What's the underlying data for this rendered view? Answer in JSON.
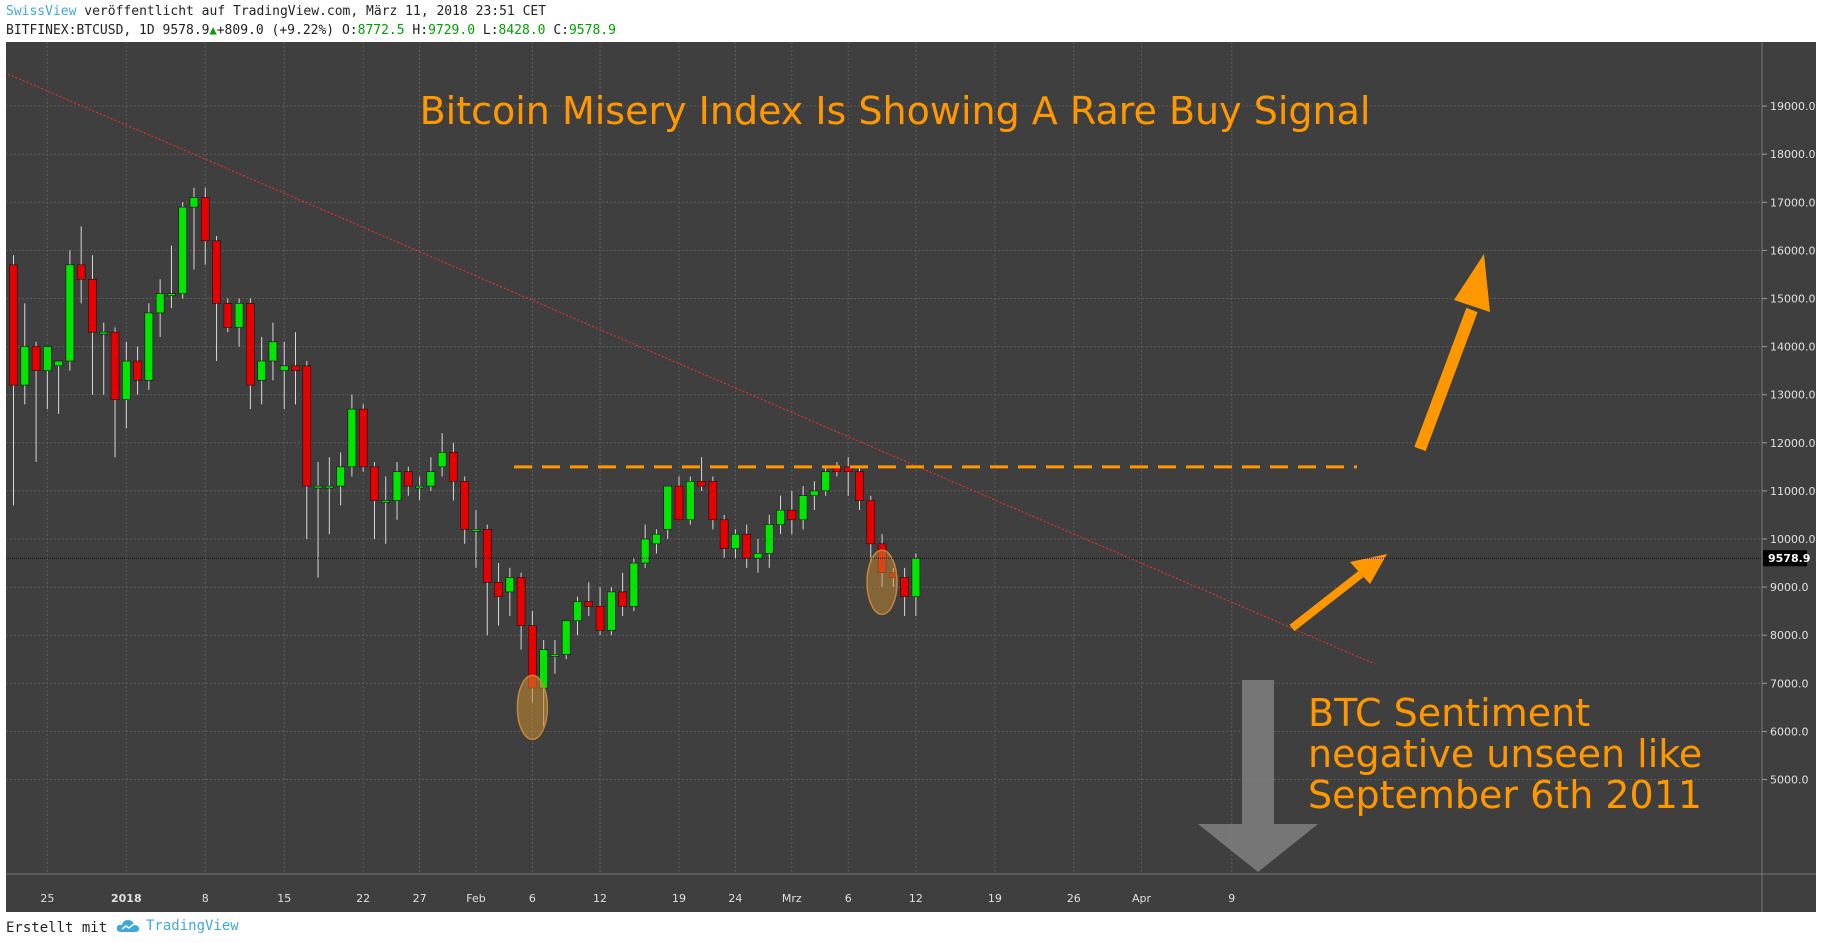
{
  "header": {
    "author": "SwissView",
    "published": " veröffentlicht auf TradingView.com, März 11, 2018 23:51 CET",
    "symbol": "BITFINEX:BTCUSD, 1D 9578.9",
    "change": "+809.0 (+9.22%)",
    "o_label": "O:",
    "o_val": "8772.5",
    "h_label": "H:",
    "h_val": "9729.0",
    "l_label": "L:",
    "l_val": "8428.0",
    "c_label": "C:",
    "c_val": "9578.9"
  },
  "footer": {
    "made_with": "Erstellt mit",
    "brand": "TradingView"
  },
  "colors": {
    "background": "#3f3f3f",
    "up": "#00e600",
    "down": "#e60000",
    "accent": "#ff9800",
    "grid": "#5d5d5d"
  },
  "chart_data": {
    "type": "candlestick",
    "title": "Bitcoin Misery Index Is Showing A Rare Buy Signal",
    "annotation": [
      "BTC Sentiment",
      "negative unseen like",
      "September 6th 2011"
    ],
    "last_price_label": "9578.9",
    "ylim": [
      4800,
      20000
    ],
    "yticks": [
      5000,
      6000,
      7000,
      8000,
      9000,
      10000,
      11000,
      12000,
      13000,
      14000,
      15000,
      16000,
      17000,
      18000,
      19000
    ],
    "ytick_labels": [
      "5000.0",
      "6000.0",
      "7000.0",
      "8000.0",
      "9000.0",
      "10000.0",
      "11000.0",
      "12000.0",
      "13000.0",
      "14000.0",
      "15000.0",
      "16000.0",
      "17000.0",
      "18000.0",
      "19000.0"
    ],
    "xticks": [
      {
        "i": 3,
        "label": "25"
      },
      {
        "i": 10,
        "label": "2018"
      },
      {
        "i": 17,
        "label": "8"
      },
      {
        "i": 24,
        "label": "15"
      },
      {
        "i": 31,
        "label": "22"
      },
      {
        "i": 36,
        "label": "27"
      },
      {
        "i": 41,
        "label": "Feb"
      },
      {
        "i": 46,
        "label": "6"
      },
      {
        "i": 52,
        "label": "12"
      },
      {
        "i": 59,
        "label": "19"
      },
      {
        "i": 64,
        "label": "24"
      },
      {
        "i": 69,
        "label": "Mrz"
      },
      {
        "i": 74,
        "label": "6"
      },
      {
        "i": 80,
        "label": "12"
      },
      {
        "i": 87,
        "label": "19"
      },
      {
        "i": 94,
        "label": "26"
      },
      {
        "i": 100,
        "label": "Apr"
      },
      {
        "i": 108,
        "label": "9"
      }
    ],
    "ohlc": [
      [
        15700,
        15900,
        10700,
        13200
      ],
      [
        13200,
        14900,
        12800,
        14000
      ],
      [
        14000,
        14100,
        11600,
        13500
      ],
      [
        13500,
        14000,
        12700,
        14000
      ],
      [
        13600,
        13700,
        12600,
        13700
      ],
      [
        13700,
        16000,
        13500,
        15700
      ],
      [
        15700,
        16500,
        14900,
        15400
      ],
      [
        15400,
        15900,
        13000,
        14300
      ],
      [
        14300,
        14500,
        13000,
        14300
      ],
      [
        14300,
        14400,
        11700,
        12900
      ],
      [
        12900,
        14100,
        12300,
        13700
      ],
      [
        13700,
        14000,
        13000,
        13300
      ],
      [
        13300,
        14900,
        13100,
        14700
      ],
      [
        14700,
        15400,
        14200,
        15100
      ],
      [
        15100,
        16100,
        14800,
        15100
      ],
      [
        15100,
        17000,
        15000,
        16900
      ],
      [
        16900,
        17300,
        15600,
        17100
      ],
      [
        17100,
        17300,
        15700,
        16200
      ],
      [
        16200,
        16300,
        13700,
        14900
      ],
      [
        14900,
        15000,
        14300,
        14400
      ],
      [
        14400,
        15000,
        14000,
        14900
      ],
      [
        14900,
        15000,
        12700,
        13200
      ],
      [
        13300,
        14200,
        12800,
        13700
      ],
      [
        13700,
        14500,
        13300,
        14100
      ],
      [
        13500,
        14100,
        12700,
        13600
      ],
      [
        13600,
        14300,
        12800,
        13500
      ],
      [
        13600,
        13700,
        10000,
        11100
      ],
      [
        11100,
        11600,
        9200,
        11100
      ],
      [
        11100,
        11700,
        10100,
        11100
      ],
      [
        11100,
        11800,
        10700,
        11500
      ],
      [
        11500,
        13000,
        11300,
        12700
      ],
      [
        12700,
        12800,
        11400,
        11500
      ],
      [
        11500,
        11600,
        10000,
        10800
      ],
      [
        10800,
        11300,
        9900,
        10800
      ],
      [
        10800,
        11600,
        10400,
        11400
      ],
      [
        11400,
        11500,
        10900,
        11100
      ],
      [
        11100,
        11300,
        10800,
        11100
      ],
      [
        11100,
        11700,
        11000,
        11400
      ],
      [
        11500,
        12200,
        11300,
        11800
      ],
      [
        11800,
        12000,
        10800,
        11200
      ],
      [
        11200,
        11300,
        9900,
        10200
      ],
      [
        10200,
        10600,
        9400,
        10200
      ],
      [
        10200,
        10300,
        8000,
        9100
      ],
      [
        9100,
        9500,
        8200,
        8800
      ],
      [
        8900,
        9400,
        8400,
        9200
      ],
      [
        9200,
        9300,
        7700,
        8200
      ],
      [
        8200,
        8500,
        6600,
        6900
      ],
      [
        6900,
        7900,
        6100,
        7700
      ],
      [
        7600,
        7900,
        7200,
        7600
      ],
      [
        7600,
        8300,
        7500,
        8300
      ],
      [
        8300,
        8800,
        8000,
        8700
      ],
      [
        8700,
        9100,
        8400,
        8600
      ],
      [
        8600,
        9000,
        8000,
        8100
      ],
      [
        8100,
        9000,
        8000,
        8900
      ],
      [
        8900,
        9300,
        8400,
        8600
      ],
      [
        8600,
        9600,
        8500,
        9500
      ],
      [
        9500,
        10300,
        9400,
        10000
      ],
      [
        9900,
        10200,
        9700,
        10100
      ],
      [
        10200,
        11100,
        10000,
        11100
      ],
      [
        11100,
        11300,
        10400,
        10400
      ],
      [
        10400,
        11300,
        10300,
        11200
      ],
      [
        11200,
        11700,
        11000,
        11100
      ],
      [
        11200,
        11300,
        10200,
        10400
      ],
      [
        10400,
        10500,
        9600,
        9800
      ],
      [
        9800,
        10200,
        9600,
        10100
      ],
      [
        10100,
        10300,
        9400,
        9600
      ],
      [
        9600,
        10000,
        9300,
        9700
      ],
      [
        9700,
        10500,
        9400,
        10300
      ],
      [
        10300,
        10900,
        10100,
        10600
      ],
      [
        10600,
        11000,
        10100,
        10400
      ],
      [
        10400,
        11100,
        10200,
        10900
      ],
      [
        10900,
        11200,
        10600,
        11000
      ],
      [
        11000,
        11500,
        10900,
        11400
      ],
      [
        11500,
        11600,
        11300,
        11400
      ],
      [
        11500,
        11700,
        10900,
        11400
      ],
      [
        11400,
        11500,
        10600,
        10800
      ],
      [
        10800,
        10900,
        9500,
        9900
      ],
      [
        9900,
        10100,
        9000,
        9300
      ],
      [
        9300,
        9400,
        9000,
        9200
      ],
      [
        9200,
        9400,
        8400,
        8800
      ],
      [
        8800,
        9700,
        8400,
        9600
      ]
    ]
  }
}
